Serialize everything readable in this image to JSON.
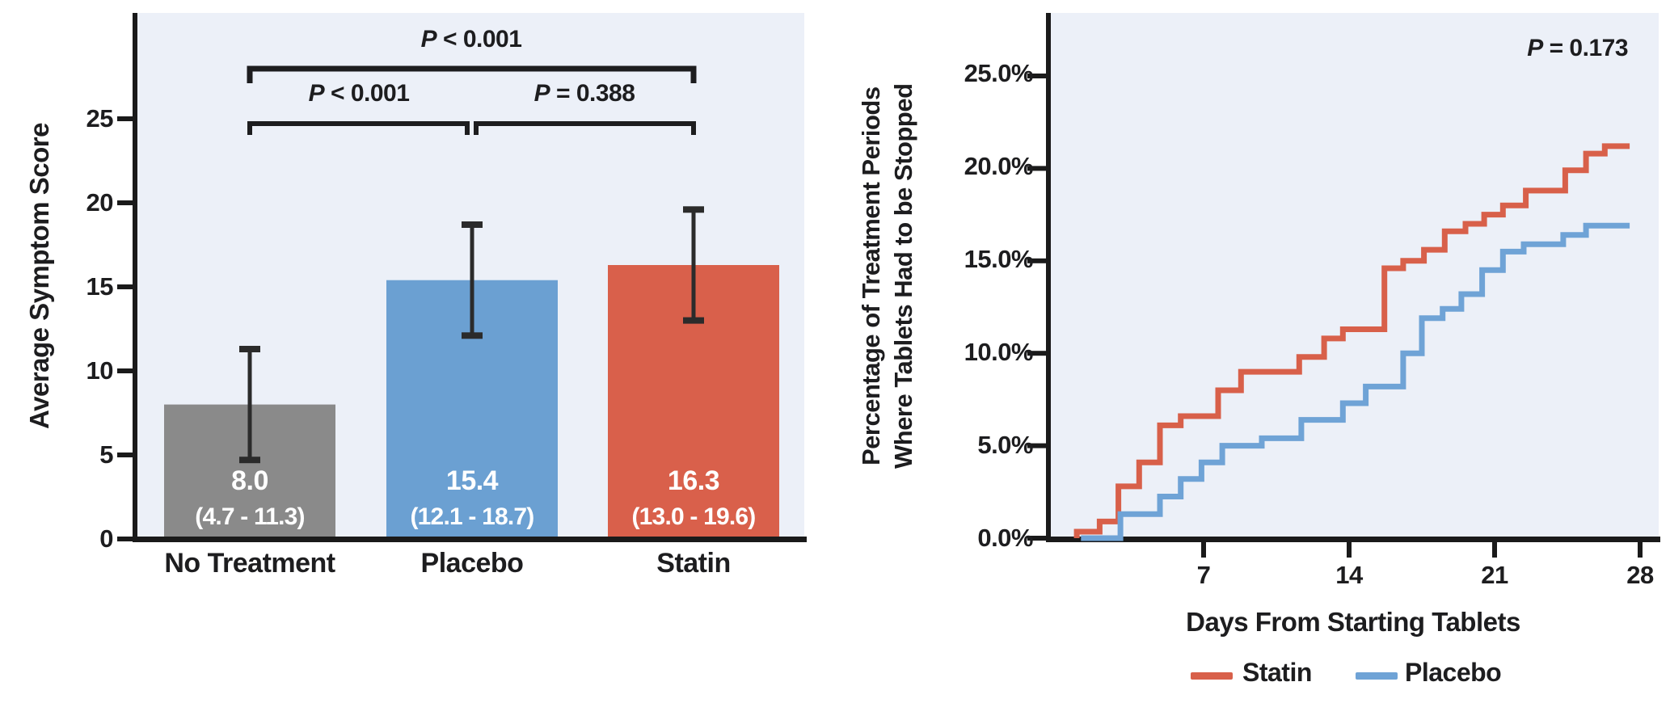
{
  "colors": {
    "panel_bg": "#ECF0F8",
    "text": "#1D1D1F",
    "axis": "#1A1A1A",
    "error_bar": "#2B2B2B",
    "bar_text": "#FFFFFF"
  },
  "chart_data": [
    {
      "type": "bar",
      "title": "",
      "ylabel": "Average Symptom Score",
      "xlabel": "",
      "ylim": [
        0,
        31.3
      ],
      "grid": false,
      "ytick_labels": [
        "0",
        "5",
        "10",
        "15",
        "20",
        "25"
      ],
      "ytick_values": [
        0,
        5,
        10,
        15,
        20,
        25
      ],
      "categories": [
        "No Treatment",
        "Placebo",
        "Statin"
      ],
      "values": [
        8.0,
        15.4,
        16.3
      ],
      "ci_low": [
        4.7,
        12.1,
        13.0
      ],
      "ci_high": [
        11.3,
        18.7,
        19.6
      ],
      "bar_value_labels": [
        "8.0",
        "15.4",
        "16.3"
      ],
      "bar_ci_labels": [
        "(4.7 - 11.3)",
        "(12.1 - 18.7)",
        "(13.0 - 19.6)"
      ],
      "bar_colors": [
        "#8A8A8A",
        "#6BA0D2",
        "#D9604B"
      ],
      "comparisons": [
        {
          "label": "P < 0.001",
          "pair": "No Treatment vs Statin",
          "level": "outer"
        },
        {
          "label": "P < 0.001",
          "pair": "No Treatment vs Placebo",
          "level": "inner"
        },
        {
          "label": "P = 0.388",
          "pair": "Placebo vs Statin",
          "level": "inner"
        }
      ]
    },
    {
      "type": "line",
      "step": true,
      "title": "",
      "ylabel_line1": "Percentage of Treatment Periods",
      "ylabel_line2": "Where Tablets Had to be Stopped",
      "xlabel": "Days From Starting Tablets",
      "annotation": "P = 0.173",
      "xlim": [
        0,
        29
      ],
      "ylim": [
        0,
        26.3
      ],
      "grid": false,
      "legend_position": "bottom",
      "ytick_labels": [
        "0.0%",
        "5.0%",
        "10.0%",
        "15.0%",
        "20.0%",
        "25.0%"
      ],
      "ytick_values": [
        0,
        5,
        10,
        15,
        20,
        25
      ],
      "xtick_labels": [
        "7",
        "14",
        "21",
        "28"
      ],
      "xtick_values": [
        7,
        14,
        21,
        28
      ],
      "series": [
        {
          "name": "Statin",
          "color": "#D8604A",
          "points": [
            [
              0.9,
              0
            ],
            [
              0.9,
              0.35
            ],
            [
              2,
              0.35
            ],
            [
              2,
              0.9
            ],
            [
              2.9,
              0.9
            ],
            [
              2.9,
              2.8
            ],
            [
              3.9,
              2.8
            ],
            [
              3.9,
              4.1
            ],
            [
              4.9,
              4.1
            ],
            [
              4.9,
              6.1
            ],
            [
              5.9,
              6.1
            ],
            [
              5.9,
              6.6
            ],
            [
              7.7,
              6.6
            ],
            [
              7.7,
              8
            ],
            [
              8.8,
              8
            ],
            [
              8.8,
              9
            ],
            [
              11.6,
              9
            ],
            [
              11.6,
              9.8
            ],
            [
              12.8,
              9.8
            ],
            [
              12.8,
              10.8
            ],
            [
              13.7,
              10.8
            ],
            [
              13.7,
              11.3
            ],
            [
              15.7,
              11.3
            ],
            [
              15.7,
              14.6
            ],
            [
              16.6,
              14.6
            ],
            [
              16.6,
              15
            ],
            [
              17.6,
              15
            ],
            [
              17.6,
              15.6
            ],
            [
              18.6,
              15.6
            ],
            [
              18.6,
              16.6
            ],
            [
              19.6,
              16.6
            ],
            [
              19.6,
              17
            ],
            [
              20.5,
              17
            ],
            [
              20.5,
              17.5
            ],
            [
              21.4,
              17.5
            ],
            [
              21.4,
              18
            ],
            [
              22.5,
              18
            ],
            [
              22.5,
              18.8
            ],
            [
              24.4,
              18.8
            ],
            [
              24.4,
              19.9
            ],
            [
              25.4,
              19.9
            ],
            [
              25.4,
              20.8
            ],
            [
              26.3,
              20.8
            ],
            [
              26.3,
              21.2
            ],
            [
              27.5,
              21.2
            ]
          ]
        },
        {
          "name": "Placebo",
          "color": "#6FA3D6",
          "points": [
            [
              1.1,
              0
            ],
            [
              3,
              0
            ],
            [
              3,
              1.3
            ],
            [
              4.9,
              1.3
            ],
            [
              4.9,
              2.25
            ],
            [
              5.9,
              2.25
            ],
            [
              5.9,
              3.2
            ],
            [
              6.9,
              3.2
            ],
            [
              6.9,
              4.1
            ],
            [
              7.9,
              4.1
            ],
            [
              7.9,
              5
            ],
            [
              9.8,
              5
            ],
            [
              9.8,
              5.4
            ],
            [
              11.7,
              5.4
            ],
            [
              11.7,
              6.4
            ],
            [
              13.7,
              6.4
            ],
            [
              13.7,
              7.3
            ],
            [
              14.8,
              7.3
            ],
            [
              14.8,
              8.2
            ],
            [
              16.6,
              8.2
            ],
            [
              16.6,
              10
            ],
            [
              17.5,
              10
            ],
            [
              17.5,
              11.9
            ],
            [
              18.5,
              11.9
            ],
            [
              18.5,
              12.4
            ],
            [
              19.4,
              12.4
            ],
            [
              19.4,
              13.2
            ],
            [
              20.4,
              13.2
            ],
            [
              20.4,
              14.5
            ],
            [
              21.4,
              14.5
            ],
            [
              21.4,
              15.5
            ],
            [
              22.4,
              15.5
            ],
            [
              22.4,
              15.9
            ],
            [
              24.3,
              15.9
            ],
            [
              24.3,
              16.4
            ],
            [
              25.4,
              16.4
            ],
            [
              25.4,
              16.9
            ],
            [
              27.5,
              16.9
            ]
          ]
        }
      ]
    }
  ]
}
